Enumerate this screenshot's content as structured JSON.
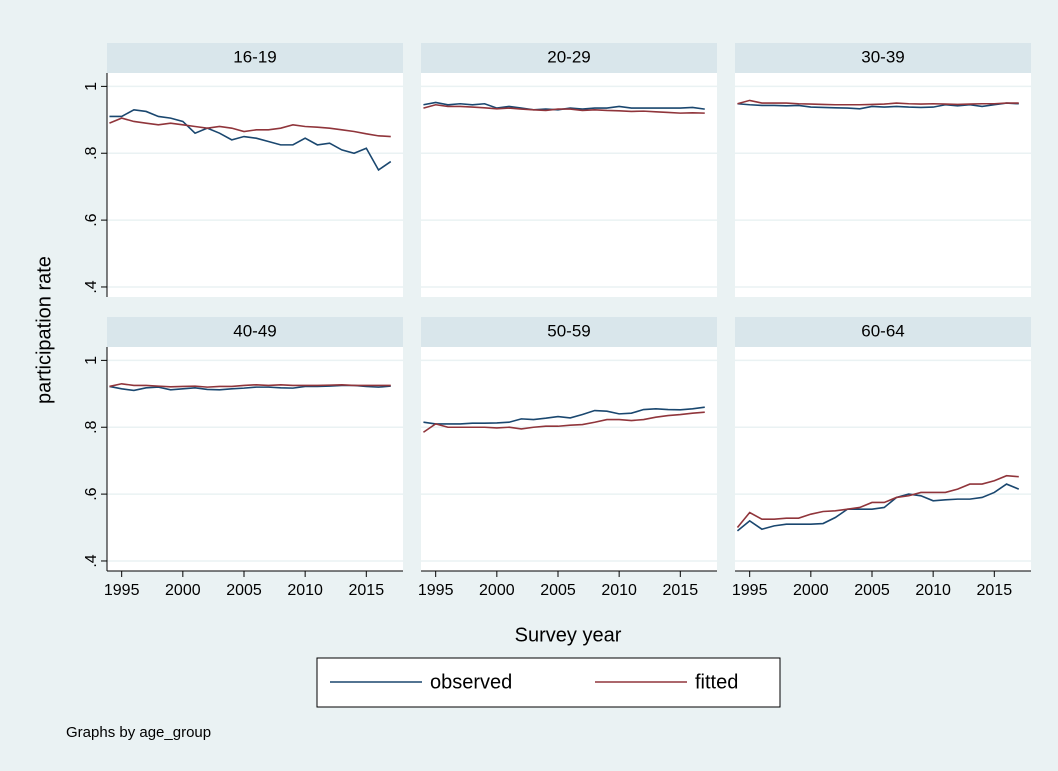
{
  "chart_data": {
    "type": "line",
    "y_label": "participation rate",
    "x_label": "Survey year",
    "note": "Graphs by age_group",
    "x": [
      1994,
      1995,
      1996,
      1997,
      1998,
      1999,
      2000,
      2001,
      2002,
      2003,
      2004,
      2005,
      2006,
      2007,
      2008,
      2009,
      2010,
      2011,
      2012,
      2013,
      2014,
      2015,
      2016,
      2017
    ],
    "xlim": [
      1993.8,
      2018
    ],
    "xticks": [
      1995,
      2000,
      2005,
      2010,
      2015
    ],
    "ylim": [
      0.37,
      1.04
    ],
    "yticks": [
      {
        "value": 0.4,
        "label": ".4"
      },
      {
        "value": 0.6,
        "label": ".6"
      },
      {
        "value": 0.8,
        "label": ".8"
      },
      1
    ],
    "grid": true,
    "series": [
      {
        "name": "observed",
        "color": "#1a476f"
      },
      {
        "name": "fitted",
        "color": "#90353b"
      }
    ],
    "panels": [
      {
        "title": "16-19",
        "values": [
          [
            0.91,
            0.91,
            0.93,
            0.925,
            0.91,
            0.905,
            0.895,
            0.86,
            0.875,
            0.86,
            0.84,
            0.85,
            0.845,
            0.835,
            0.825,
            0.825,
            0.845,
            0.825,
            0.83,
            0.81,
            0.8,
            0.815,
            0.75,
            0.775
          ],
          [
            0.89,
            0.905,
            0.895,
            0.89,
            0.885,
            0.89,
            0.885,
            0.88,
            0.875,
            0.88,
            0.875,
            0.865,
            0.87,
            0.87,
            0.875,
            0.885,
            0.88,
            0.878,
            0.875,
            0.87,
            0.865,
            0.858,
            0.852,
            0.85
          ]
        ]
      },
      {
        "title": "20-29",
        "values": [
          [
            0.945,
            0.952,
            0.945,
            0.948,
            0.945,
            0.948,
            0.935,
            0.94,
            0.935,
            0.93,
            0.932,
            0.93,
            0.935,
            0.932,
            0.935,
            0.935,
            0.94,
            0.935,
            0.935,
            0.935,
            0.935,
            0.935,
            0.937,
            0.932
          ],
          [
            0.935,
            0.945,
            0.94,
            0.94,
            0.938,
            0.936,
            0.933,
            0.935,
            0.932,
            0.93,
            0.928,
            0.932,
            0.932,
            0.928,
            0.93,
            0.928,
            0.927,
            0.925,
            0.926,
            0.924,
            0.922,
            0.92,
            0.921,
            0.92
          ]
        ]
      },
      {
        "title": "30-39",
        "values": [
          [
            0.948,
            0.945,
            0.943,
            0.943,
            0.942,
            0.943,
            0.938,
            0.937,
            0.936,
            0.935,
            0.933,
            0.94,
            0.938,
            0.94,
            0.938,
            0.937,
            0.938,
            0.945,
            0.942,
            0.945,
            0.94,
            0.945,
            0.95,
            0.948
          ],
          [
            0.948,
            0.958,
            0.95,
            0.95,
            0.95,
            0.948,
            0.947,
            0.946,
            0.945,
            0.945,
            0.945,
            0.946,
            0.947,
            0.95,
            0.948,
            0.947,
            0.948,
            0.947,
            0.946,
            0.947,
            0.948,
            0.948,
            0.95,
            0.95
          ]
        ]
      },
      {
        "title": "40-49",
        "values": [
          [
            0.922,
            0.915,
            0.91,
            0.918,
            0.92,
            0.912,
            0.915,
            0.918,
            0.913,
            0.912,
            0.915,
            0.917,
            0.92,
            0.92,
            0.918,
            0.917,
            0.922,
            0.922,
            0.923,
            0.925,
            0.925,
            0.922,
            0.92,
            0.923
          ],
          [
            0.922,
            0.93,
            0.925,
            0.925,
            0.923,
            0.921,
            0.922,
            0.923,
            0.92,
            0.922,
            0.922,
            0.925,
            0.927,
            0.925,
            0.927,
            0.925,
            0.925,
            0.925,
            0.926,
            0.927,
            0.925,
            0.925,
            0.925,
            0.925
          ]
        ]
      },
      {
        "title": "50-59",
        "values": [
          [
            0.815,
            0.81,
            0.81,
            0.81,
            0.812,
            0.812,
            0.813,
            0.815,
            0.825,
            0.823,
            0.827,
            0.832,
            0.828,
            0.838,
            0.85,
            0.848,
            0.84,
            0.842,
            0.853,
            0.855,
            0.853,
            0.852,
            0.855,
            0.86
          ],
          [
            0.785,
            0.81,
            0.8,
            0.8,
            0.8,
            0.8,
            0.798,
            0.8,
            0.795,
            0.8,
            0.803,
            0.803,
            0.806,
            0.808,
            0.815,
            0.823,
            0.823,
            0.82,
            0.823,
            0.83,
            0.835,
            0.838,
            0.842,
            0.845
          ]
        ]
      },
      {
        "title": "60-64",
        "values": [
          [
            0.49,
            0.52,
            0.495,
            0.505,
            0.51,
            0.51,
            0.51,
            0.512,
            0.53,
            0.555,
            0.555,
            0.555,
            0.56,
            0.59,
            0.6,
            0.595,
            0.58,
            0.583,
            0.585,
            0.585,
            0.59,
            0.605,
            0.63,
            0.615
          ],
          [
            0.5,
            0.545,
            0.525,
            0.525,
            0.528,
            0.528,
            0.54,
            0.548,
            0.55,
            0.555,
            0.56,
            0.575,
            0.575,
            0.59,
            0.595,
            0.605,
            0.605,
            0.605,
            0.615,
            0.63,
            0.63,
            0.64,
            0.655,
            0.652
          ]
        ]
      }
    ]
  }
}
